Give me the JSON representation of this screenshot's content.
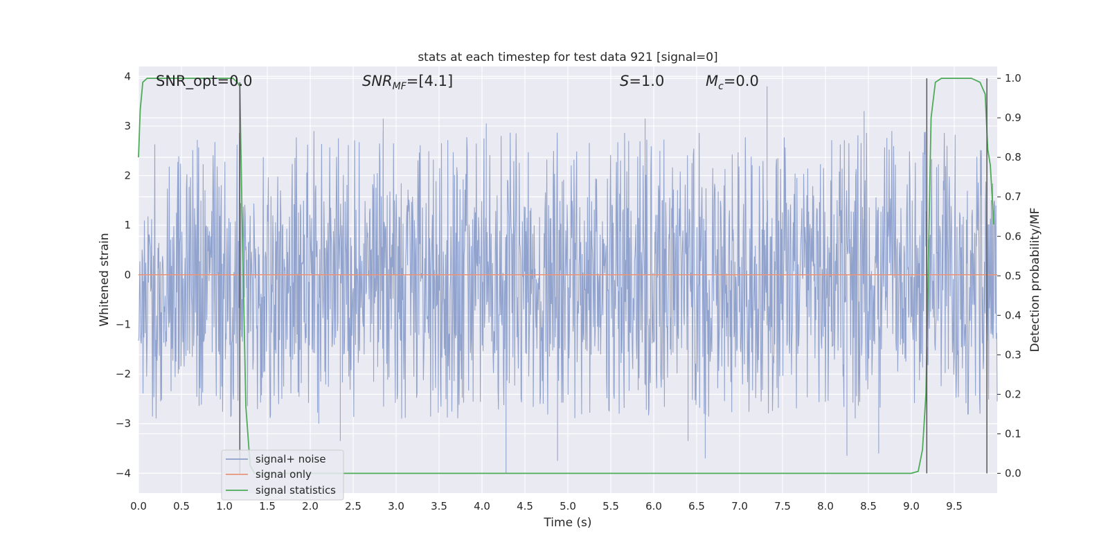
{
  "chart_data": {
    "type": "line",
    "title": "stats at each timestep for test data 921 [signal=0]",
    "xlabel": "Time (s)",
    "ylabel_left": "Whitened strain",
    "ylabel_right": "Detection probability/MF",
    "xlim": [
      0.0,
      10.0
    ],
    "ylim_left": [
      -4.4,
      4.2
    ],
    "ylim_right": [
      -0.05,
      1.03
    ],
    "xticks": [
      "0.0",
      "0.5",
      "1.0",
      "1.5",
      "2.0",
      "2.5",
      "3.0",
      "3.5",
      "4.0",
      "4.5",
      "5.0",
      "5.5",
      "6.0",
      "6.5",
      "7.0",
      "7.5",
      "8.0",
      "8.5",
      "9.0",
      "9.5"
    ],
    "yticks_left": [
      "−4",
      "−3",
      "−2",
      "−1",
      "0",
      "1",
      "2",
      "3",
      "4"
    ],
    "yticks_right": [
      "0.0",
      "0.1",
      "0.2",
      "0.3",
      "0.4",
      "0.5",
      "0.6",
      "0.7",
      "0.8",
      "0.9",
      "1.0"
    ],
    "grid": true,
    "legend_position": "lower-left",
    "annotations": {
      "snr_opt": "SNR_opt=0.0",
      "snr_mf_italic": "SNR",
      "snr_mf_sub": "MF",
      "snr_mf_rest": "=[4.1]",
      "s_italic": "S",
      "s_rest": "=1.0",
      "mc_italic": "M",
      "mc_sub": "c",
      "mc_rest": "=0.0"
    },
    "series": [
      {
        "name": "signal+ noise",
        "color": "#8c9fca",
        "axis": "left",
        "noise_envelope": [
          -1.7,
          1.5
        ],
        "noise_peak_range": [
          -4.0,
          3.85
        ],
        "notable_peaks": [
          {
            "x": 2.85,
            "y": 3.15
          },
          {
            "x": 4.05,
            "y": 3.05
          },
          {
            "x": 5.9,
            "y": 3.15
          },
          {
            "x": 7.32,
            "y": 3.8
          },
          {
            "x": 8.45,
            "y": 3.3
          },
          {
            "x": 4.28,
            "y": -4.0
          },
          {
            "x": 4.88,
            "y": -3.75
          },
          {
            "x": 2.35,
            "y": -3.35
          },
          {
            "x": 6.6,
            "y": -3.7
          },
          {
            "x": 8.25,
            "y": -3.65
          },
          {
            "x": 8.62,
            "y": -3.6
          },
          {
            "x": 6.4,
            "y": -3.35
          },
          {
            "x": 2.1,
            "y": -3.0
          }
        ]
      },
      {
        "name": "signal only",
        "color": "#e8947a",
        "axis": "left",
        "values": "flat 0.0"
      },
      {
        "name": "signal statistics",
        "color": "#4daa57",
        "axis": "right",
        "x": [
          0.0,
          0.02,
          0.05,
          0.1,
          0.2,
          1.1,
          1.15,
          1.18,
          1.21,
          1.25,
          1.3,
          1.35,
          1.5,
          2.0,
          5.0,
          8.0,
          9.0,
          9.08,
          9.13,
          9.17,
          9.2,
          9.23,
          9.28,
          9.35,
          9.5,
          9.7,
          9.8,
          9.86,
          9.89,
          9.92,
          9.96
        ],
        "y": [
          0.8,
          0.92,
          0.99,
          1.0,
          1.0,
          1.0,
          0.99,
          0.98,
          0.6,
          0.17,
          0.02,
          0.0,
          0.0,
          0.0,
          0.0,
          0.0,
          0.0,
          0.005,
          0.06,
          0.2,
          0.55,
          0.9,
          0.99,
          1.0,
          1.0,
          1.0,
          0.99,
          0.96,
          0.82,
          0.78,
          0.63
        ]
      }
    ],
    "vertical_markers": [
      {
        "x": 1.18,
        "y_top": 0.99,
        "y_bottom": 0.0
      },
      {
        "x": 9.18,
        "y_top": 1.0,
        "y_bottom": 0.0
      },
      {
        "x": 9.88,
        "y_top": 1.0,
        "y_bottom": 0.0
      }
    ]
  }
}
